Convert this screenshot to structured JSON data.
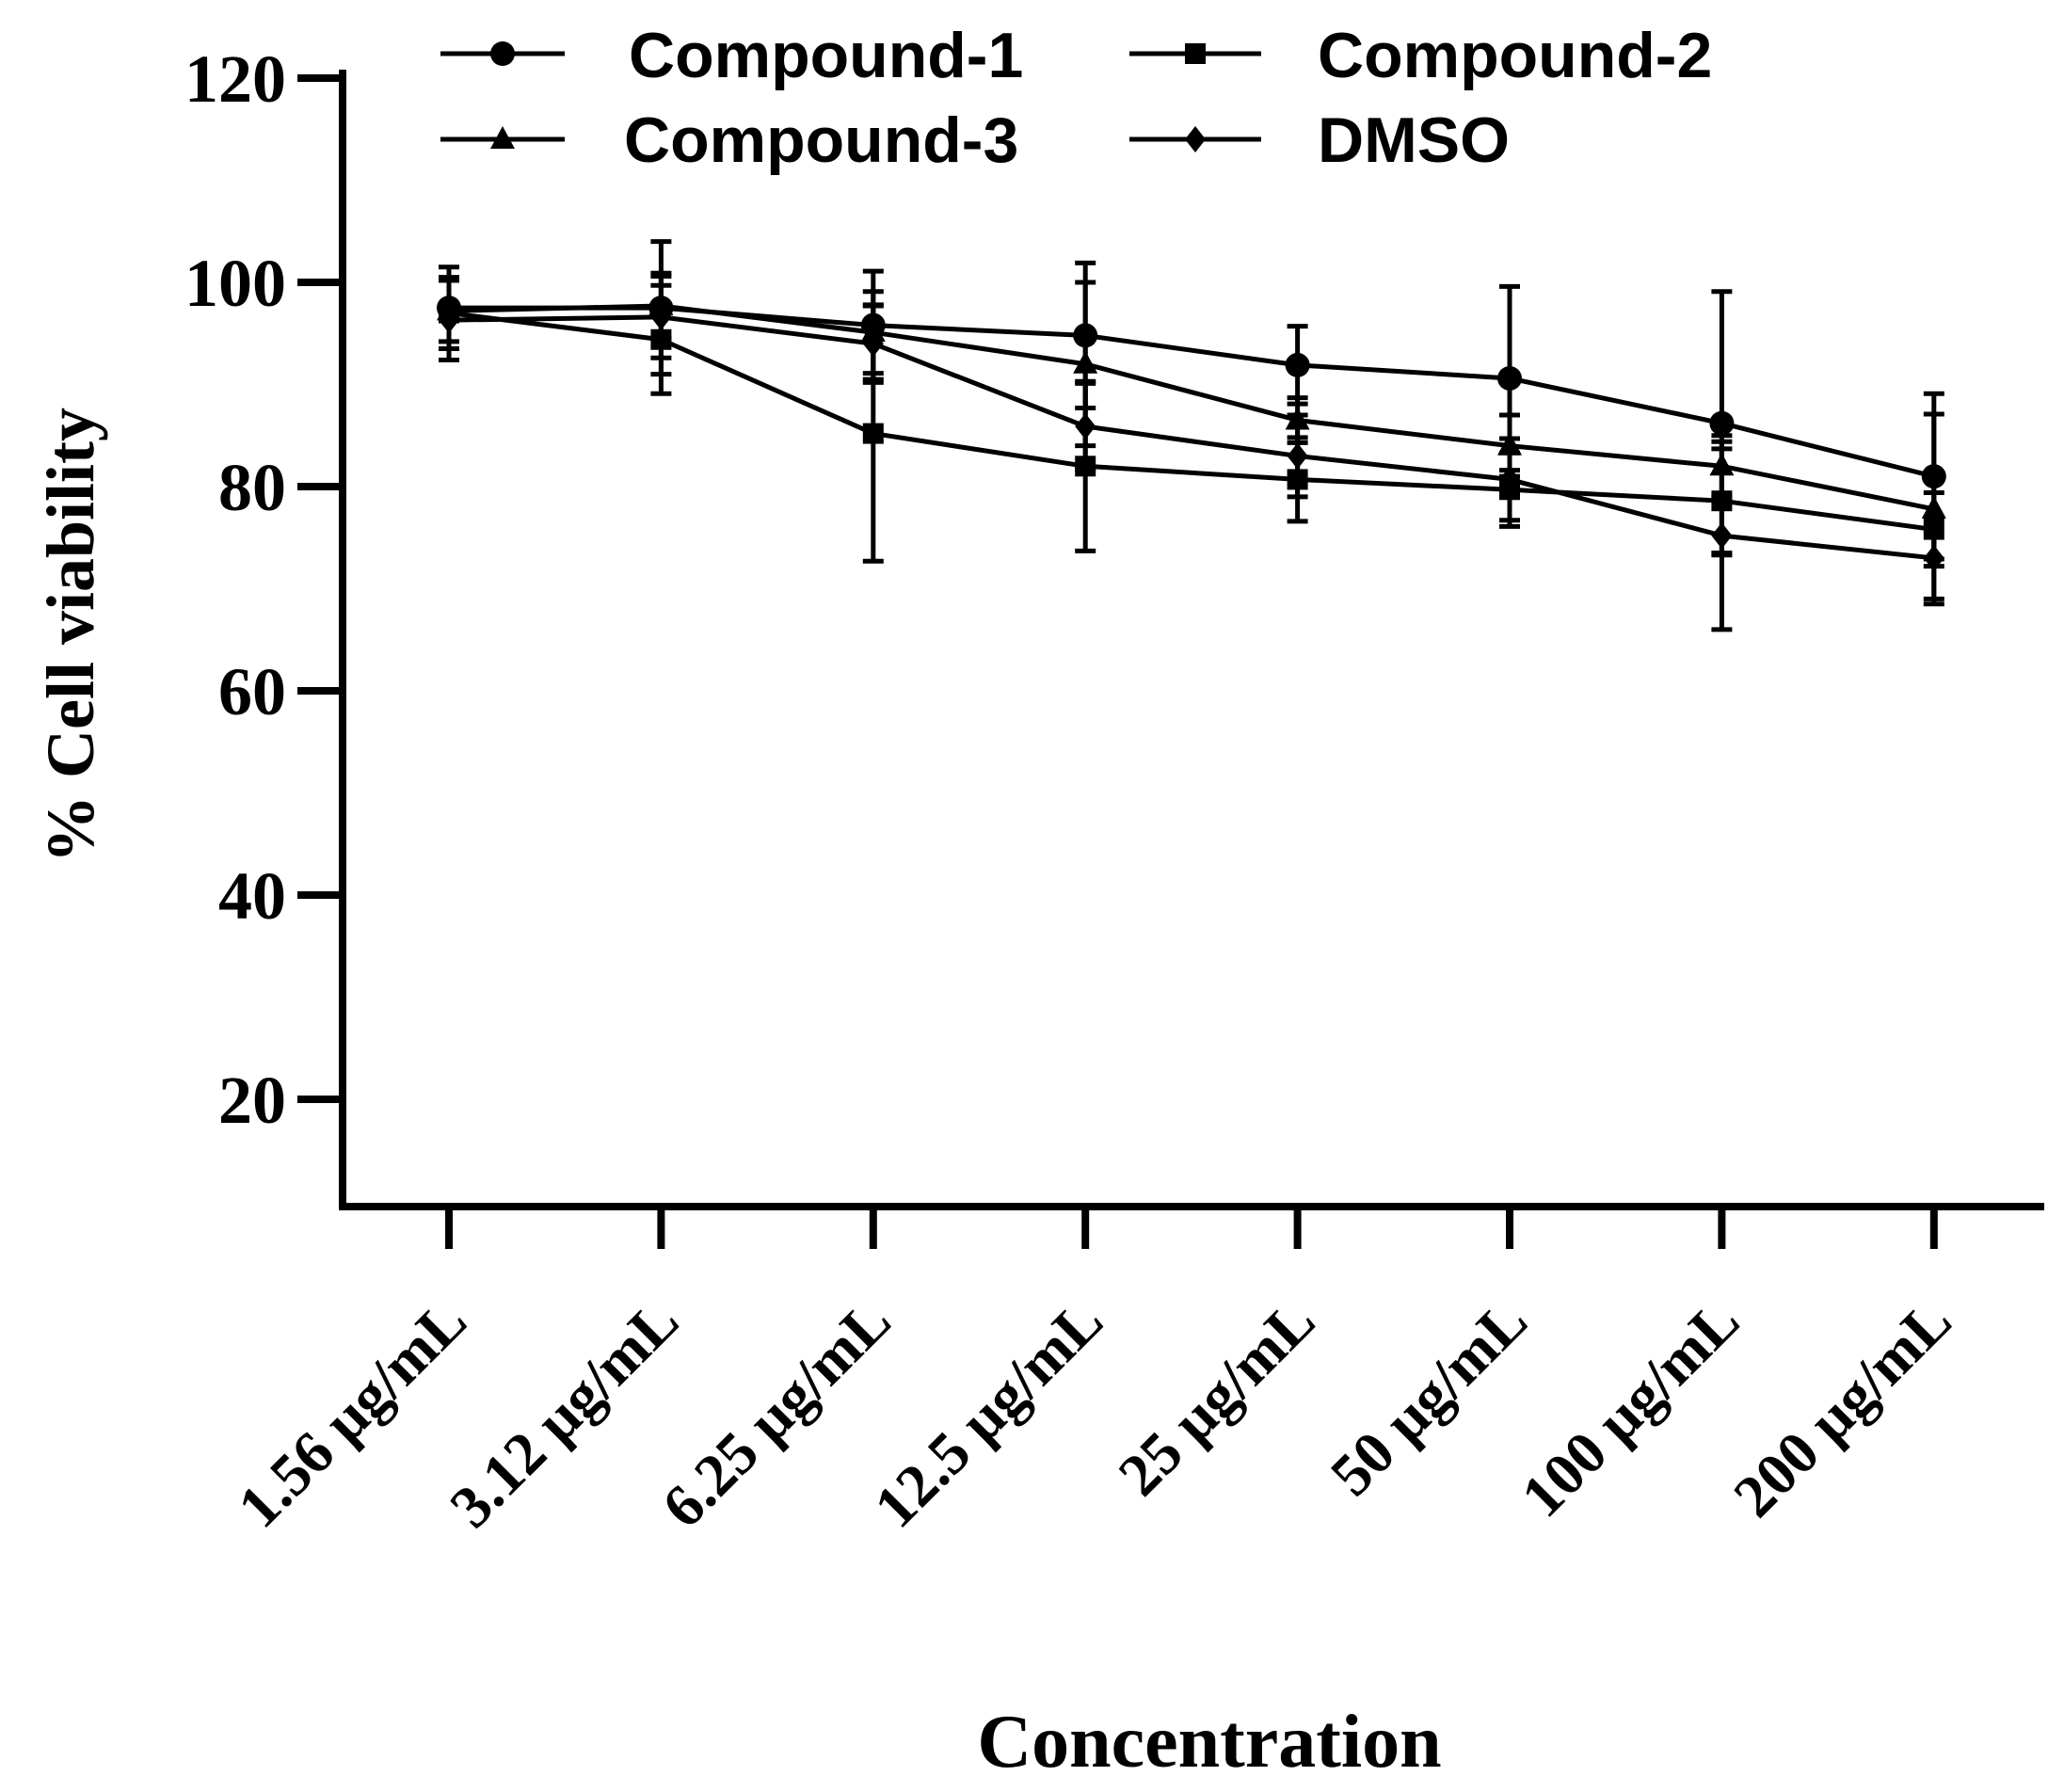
{
  "chart_data": {
    "type": "line",
    "title": "",
    "xlabel": "Concentration",
    "ylabel": "% Cell viability",
    "categories": [
      "1.56 µg/mL",
      "3.12 µg/mL",
      "6.25 µg/mL",
      "12.5 µg/mL",
      "25 µg/mL",
      "50 µg/mL",
      "100 µg/mL",
      "200 µg/mL"
    ],
    "yticks": [
      20,
      40,
      60,
      80,
      100,
      120
    ],
    "ylim": [
      10,
      120
    ],
    "grid": false,
    "legend_position": "top",
    "series": [
      {
        "name": "Compound-1",
        "marker": "circle",
        "values": [
          97.5,
          97.5,
          95.8,
          94.8,
          91.9,
          90.6,
          86.2,
          81.0
        ],
        "errors": [
          4.0,
          6.5,
          5.3,
          7.1,
          3.8,
          9.0,
          12.9,
          8.1
        ]
      },
      {
        "name": "Compound-2",
        "marker": "square",
        "values": [
          97.0,
          94.4,
          85.2,
          82.0,
          80.7,
          79.7,
          78.6,
          75.8
        ],
        "errors": [
          3.5,
          5.3,
          12.5,
          8.3,
          4.1,
          3.6,
          5.1,
          3.6
        ]
      },
      {
        "name": "Compound-3",
        "marker": "triangle",
        "values": [
          97.2,
          97.7,
          95.1,
          92.0,
          86.5,
          84.0,
          82.0,
          77.8
        ],
        "errors": [
          3.0,
          3.2,
          4.0,
          8.0,
          2.2,
          3.0,
          3.0,
          9.3
        ]
      },
      {
        "name": "DMSO",
        "marker": "diamond",
        "values": [
          96.3,
          96.6,
          94.0,
          85.9,
          83.0,
          80.7,
          75.2,
          73.0
        ],
        "errors": [
          3.9,
          4.0,
          3.8,
          4.2,
          4.0,
          4.0,
          9.2,
          4.0
        ]
      }
    ]
  }
}
